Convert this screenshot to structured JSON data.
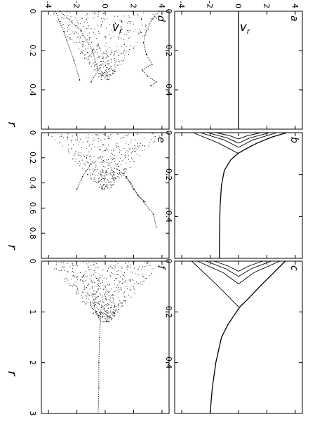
{
  "figure": {
    "rotation": "90",
    "axis_label_r": "r",
    "axis_label_v": "v",
    "axis_label_v_sub": "r"
  },
  "colors": {
    "ink": "#000000",
    "frame": "#000000",
    "background": "#ffffff"
  },
  "chart_data": [
    {
      "panel": "a",
      "type": "line",
      "xlim": [
        0,
        0.6
      ],
      "xticks": [
        "0",
        "0.2",
        "0.4"
      ],
      "ylim": [
        -4.5,
        4.5
      ],
      "yticks": [
        "4",
        "2",
        "0",
        "-2",
        "-4"
      ],
      "series": [
        {
          "x": [
            0,
            0.6
          ],
          "y": [
            0,
            0
          ]
        }
      ]
    },
    {
      "panel": "b",
      "type": "line",
      "xlim": [
        0,
        0.6
      ],
      "xticks": [
        "0",
        "0.2",
        "0.4"
      ],
      "ylim": [
        -4.5,
        4.5
      ],
      "series": [
        {
          "x": [
            0,
            0.02,
            0.05,
            0.08,
            0.1,
            0.13,
            0.18,
            0.25,
            0.35,
            0.45,
            0.6
          ],
          "y": [
            3.4,
            2.4,
            1.3,
            0.45,
            -0.05,
            -0.55,
            -1.0,
            -1.2,
            -1.3,
            -1.33,
            -1.35
          ]
        },
        {
          "x": [
            0,
            0.05,
            0.1
          ],
          "y": [
            -3.2,
            -1.4,
            0
          ]
        },
        {
          "x": [
            0,
            0.035,
            0.07
          ],
          "y": [
            2.7,
            1.0,
            0
          ]
        },
        {
          "x": [
            0,
            0.035,
            0.07
          ],
          "y": [
            -2.7,
            -1.0,
            0
          ]
        },
        {
          "x": [
            0,
            0.025,
            0.05
          ],
          "y": [
            2.2,
            0.8,
            0
          ]
        },
        {
          "x": [
            0,
            0.025,
            0.05
          ],
          "y": [
            -2.2,
            -0.8,
            0
          ]
        },
        {
          "x": [
            0,
            0.015,
            0.03
          ],
          "y": [
            1.6,
            0.6,
            0
          ]
        },
        {
          "x": [
            0,
            0.015,
            0.03
          ],
          "y": [
            -1.6,
            -0.6,
            0
          ]
        }
      ]
    },
    {
      "panel": "c",
      "type": "line",
      "xlim": [
        0,
        0.6
      ],
      "xticks": [
        "0",
        "0.2",
        "0.4"
      ],
      "ylim": [
        -4.5,
        4.5
      ],
      "series": [
        {
          "x": [
            0,
            0.05,
            0.1,
            0.15,
            0.18,
            0.2,
            0.25,
            0.3,
            0.4,
            0.5,
            0.6
          ],
          "y": [
            3.3,
            2.4,
            1.5,
            0.65,
            0.1,
            -0.15,
            -0.75,
            -1.2,
            -1.6,
            -1.85,
            -2.0
          ]
        },
        {
          "x": [
            0,
            0.09,
            0.18
          ],
          "y": [
            -3.3,
            -1.6,
            0
          ]
        },
        {
          "x": [
            0,
            0.045,
            0.09
          ],
          "y": [
            2.9,
            1.1,
            0
          ]
        },
        {
          "x": [
            0,
            0.045,
            0.09
          ],
          "y": [
            -2.9,
            -1.1,
            0
          ]
        },
        {
          "x": [
            0,
            0.03,
            0.06
          ],
          "y": [
            2.3,
            0.9,
            0
          ]
        },
        {
          "x": [
            0,
            0.03,
            0.06
          ],
          "y": [
            -2.3,
            -0.9,
            0
          ]
        },
        {
          "x": [
            0,
            0.02,
            0.04
          ],
          "y": [
            1.7,
            0.7,
            0
          ]
        },
        {
          "x": [
            0,
            0.02,
            0.04
          ],
          "y": [
            -1.7,
            -0.7,
            0
          ]
        }
      ]
    },
    {
      "panel": "d",
      "type": "scatter",
      "xlim": [
        0,
        0.6
      ],
      "xticks": [
        "0",
        "0.2",
        "0.4"
      ],
      "ylim": [
        -4.5,
        4.5
      ],
      "yticks": [
        "4",
        "2",
        "0",
        "-2",
        "-4"
      ],
      "series": [
        {
          "x": [
            0,
            0.04,
            0.1,
            0.16,
            0.22,
            0.27,
            0.3,
            0.33,
            0.36,
            0.38
          ],
          "y": [
            3.8,
            3.3,
            2.9,
            2.7,
            2.9,
            3.3,
            2.6,
            3.0,
            3.6,
            3.2
          ]
        },
        {
          "x": [
            0,
            0.1,
            0.2,
            0.3,
            0.36
          ],
          "y": [
            -3.2,
            -1.7,
            -0.9,
            -0.5,
            -1.0
          ]
        },
        {
          "x": [
            0,
            0.15,
            0.25,
            0.35
          ],
          "y": [
            -3.5,
            -2.7,
            -2.2,
            -1.8
          ]
        }
      ]
    },
    {
      "panel": "e",
      "type": "scatter",
      "xlim": [
        0,
        1.0
      ],
      "xticks": [
        "0",
        "0.2",
        "0.4",
        "0.6",
        "0.8"
      ],
      "ylim": [
        -4.5,
        4.5
      ],
      "series": [
        {
          "x": [
            0.35,
            0.45,
            0.55,
            0.65,
            0.75
          ],
          "y": [
            1.5,
            2.0,
            2.7,
            3.4,
            3.6
          ]
        },
        {
          "x": [
            0.3,
            0.4,
            0.5,
            0.55
          ],
          "y": [
            1.0,
            1.8,
            2.3,
            2.8
          ]
        },
        {
          "x": [
            0.25,
            0.35,
            0.45
          ],
          "y": [
            -1.0,
            -1.6,
            -2.0
          ]
        }
      ]
    },
    {
      "panel": "f",
      "type": "scatter",
      "xlim": [
        0,
        3.0
      ],
      "xticks": [
        "0",
        "1",
        "2",
        "3"
      ],
      "ylim": [
        -4.5,
        4.5
      ],
      "series": [
        {
          "x": [
            1.0,
            1.5,
            2.0,
            2.5,
            3.0
          ],
          "y": [
            -0.3,
            -0.4,
            -0.45,
            -0.45,
            -0.5
          ]
        }
      ]
    }
  ]
}
